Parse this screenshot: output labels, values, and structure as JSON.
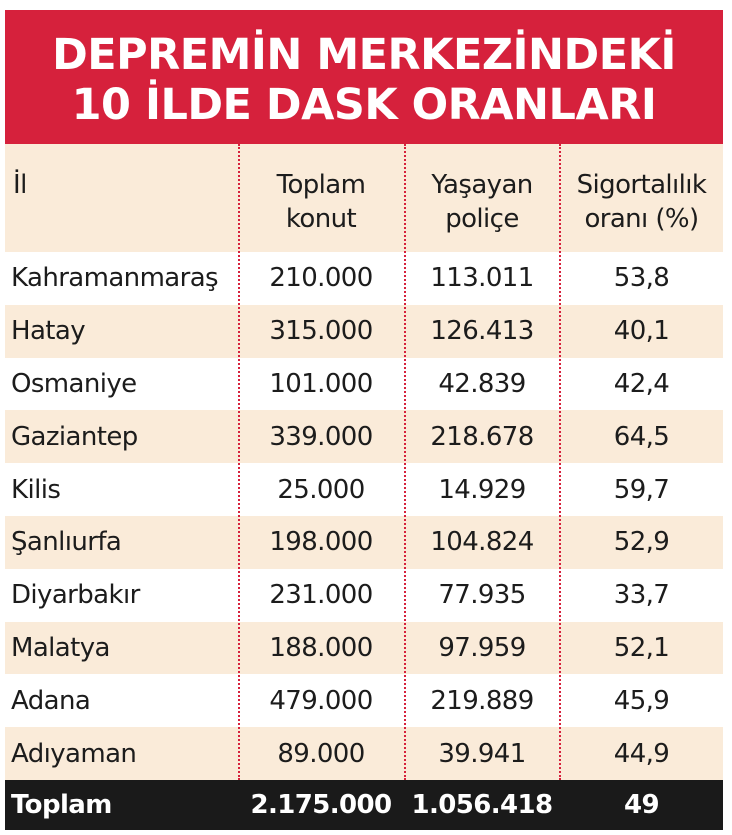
{
  "title_lines": [
    "DEPREMİN MERKEZİNDEKİ",
    "10 İLDE DASK ORANLARI"
  ],
  "colors": {
    "title_bg": "#d6213c",
    "stripe": "#faebd9",
    "total_bg": "#1a1a1a",
    "divider": "#d6213c"
  },
  "chart_data": {
    "type": "table",
    "title": "DEPREMİN MERKEZİNDEKİ 10 İLDE DASK ORANLARI",
    "columns": [
      "İl",
      "Toplam\nkonut",
      "Yaşayan\npoliçe",
      "Sigortalılık\noranı (%)"
    ],
    "rows": [
      [
        "Kahramanmaraş",
        "210.000",
        "113.011",
        "53,8"
      ],
      [
        "Hatay",
        "315.000",
        "126.413",
        "40,1"
      ],
      [
        "Osmaniye",
        "101.000",
        "42.839",
        "42,4"
      ],
      [
        "Gaziantep",
        "339.000",
        "218.678",
        "64,5"
      ],
      [
        "Kilis",
        "25.000",
        "14.929",
        "59,7"
      ],
      [
        "Şanlıurfa",
        "198.000",
        "104.824",
        "52,9"
      ],
      [
        "Diyarbakır",
        "231.000",
        "77.935",
        "33,7"
      ],
      [
        "Malatya",
        "188.000",
        "97.959",
        "52,1"
      ],
      [
        "Adana",
        "479.000",
        "219.889",
        "45,9"
      ],
      [
        "Adıyaman",
        "89.000",
        "39.941",
        "44,9"
      ]
    ],
    "total": [
      "Toplam",
      "2.175.000",
      "1.056.418",
      "49"
    ]
  }
}
